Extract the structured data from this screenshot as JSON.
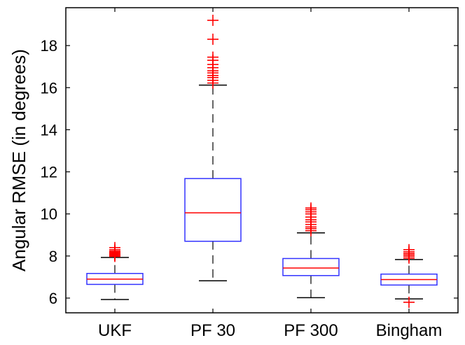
{
  "chart_data": {
    "type": "boxplot",
    "title": "",
    "xlabel": "",
    "ylabel": "Angular RMSE (in degrees)",
    "ylim": [
      5.3,
      19.8
    ],
    "yticks": [
      6,
      8,
      10,
      12,
      14,
      16,
      18
    ],
    "grid": false,
    "categories": [
      "UKF",
      "PF 30",
      "PF 300",
      "Bingham"
    ],
    "series": [
      {
        "name": "UKF",
        "whisker_low": 5.93,
        "q1": 6.65,
        "median": 6.9,
        "q3": 7.17,
        "whisker_high": 7.93,
        "outliers": [
          7.98,
          8.02,
          8.06,
          8.1,
          8.14,
          8.18,
          8.23,
          8.3,
          8.4
        ]
      },
      {
        "name": "PF 30",
        "whisker_low": 6.82,
        "q1": 8.7,
        "median": 10.05,
        "q3": 11.68,
        "whisker_high": 16.12,
        "outliers": [
          16.22,
          16.35,
          16.48,
          16.58,
          16.7,
          16.8,
          16.95,
          17.1,
          17.3,
          17.45,
          18.3,
          19.2
        ]
      },
      {
        "name": "PF 300",
        "whisker_low": 6.02,
        "q1": 7.07,
        "median": 7.43,
        "q3": 7.88,
        "whisker_high": 9.1,
        "outliers": [
          9.2,
          9.3,
          9.38,
          9.5,
          9.62,
          9.72,
          9.85,
          10.0,
          10.1,
          10.2,
          10.28
        ]
      },
      {
        "name": "Bingham",
        "whisker_low": 5.96,
        "q1": 6.62,
        "median": 6.88,
        "q3": 7.14,
        "whisker_high": 7.83,
        "outliers": [
          5.8,
          7.9,
          7.98,
          8.05,
          8.12,
          8.2,
          8.3
        ]
      }
    ],
    "colors": {
      "box": "#3333ff",
      "median": "#ff0000",
      "whisker": "#000000",
      "outlier": "#ff0000",
      "axes": "#000000"
    }
  }
}
